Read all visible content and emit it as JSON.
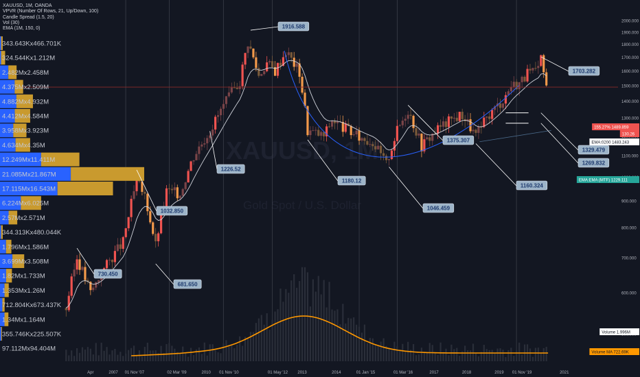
{
  "header": {
    "symbol": "XAUUSD, 1M, OANDA",
    "indicators": [
      "VPVR (Number Of Rows, 21, Up/Down, 100)",
      "Candle Spread (1.5, 20)",
      "Vol (30)",
      "EMA (1M, 150, 0)"
    ]
  },
  "watermark": {
    "main": "XAUUSD, 1M",
    "sub": "Gold Spot / U.S. Dollar"
  },
  "colors": {
    "background": "#131722",
    "up": "#ef5350",
    "down": "#f2994a",
    "neutral": "#4a4e58",
    "vp_up": "#2962ff",
    "vp_down": "#c99a2e",
    "ema": "#d1d4dc",
    "volume_ma": "#ff9800",
    "cup": "#2962ff",
    "label_bg": "#9db4c8",
    "label_text": "#1e3a6e"
  },
  "chart_data": {
    "type": "candlestick",
    "y_scale": "log",
    "ylim": [
      500,
      2100
    ],
    "y_ticks": [
      "2000.000",
      "1900.000",
      "1800.000",
      "1700.000",
      "1600.000",
      "1500.000",
      "1400.000",
      "1300.000",
      "1200.000",
      "1100.000",
      "1000.000",
      "900.000",
      "800.000",
      "700.000",
      "600.000",
      "500.000"
    ],
    "x_labels": [
      "Apr",
      "2007",
      "01 Nov '07",
      "02 Mar '09",
      "2010",
      "01 Nov '10",
      "01 May '12",
      "2013",
      "2014",
      "01 Jan '15",
      "01 Mar '16",
      "2017",
      "2018",
      "2019",
      "01 Nov '19",
      "2021"
    ],
    "price_points": [
      {
        "date": "2006-01",
        "close": 560
      },
      {
        "date": "2006-05",
        "close": 700
      },
      {
        "date": "2006-10",
        "close": 600
      },
      {
        "date": "2007-04",
        "close": 680
      },
      {
        "date": "2007-10",
        "close": 750
      },
      {
        "date": "2008-03",
        "close": 980
      },
      {
        "date": "2008-06",
        "close": 920
      },
      {
        "date": "2008-10",
        "close": 740
      },
      {
        "date": "2009-02",
        "close": 940
      },
      {
        "date": "2009-07",
        "close": 930
      },
      {
        "date": "2009-12",
        "close": 1100
      },
      {
        "date": "2010-06",
        "close": 1230
      },
      {
        "date": "2010-12",
        "close": 1400
      },
      {
        "date": "2011-05",
        "close": 1530
      },
      {
        "date": "2011-08",
        "close": 1820
      },
      {
        "date": "2011-12",
        "close": 1570
      },
      {
        "date": "2012-03",
        "close": 1660
      },
      {
        "date": "2012-06",
        "close": 1600
      },
      {
        "date": "2012-10",
        "close": 1750
      },
      {
        "date": "2013-03",
        "close": 1590
      },
      {
        "date": "2013-06",
        "close": 1230
      },
      {
        "date": "2013-12",
        "close": 1200
      },
      {
        "date": "2014-03",
        "close": 1290
      },
      {
        "date": "2014-12",
        "close": 1200
      },
      {
        "date": "2015-06",
        "close": 1170
      },
      {
        "date": "2015-11",
        "close": 1060
      },
      {
        "date": "2016-03",
        "close": 1230
      },
      {
        "date": "2016-07",
        "close": 1350
      },
      {
        "date": "2016-12",
        "close": 1150
      },
      {
        "date": "2017-06",
        "close": 1240
      },
      {
        "date": "2017-12",
        "close": 1300
      },
      {
        "date": "2018-03",
        "close": 1320
      },
      {
        "date": "2018-08",
        "close": 1200
      },
      {
        "date": "2019-01",
        "close": 1320
      },
      {
        "date": "2019-06",
        "close": 1410
      },
      {
        "date": "2019-09",
        "close": 1500
      },
      {
        "date": "2019-12",
        "close": 1520
      },
      {
        "date": "2020-03",
        "close": 1580
      },
      {
        "date": "2020-07",
        "close": 1600
      },
      {
        "date": "2020-08",
        "close": 1700
      },
      {
        "date": "2020-10",
        "close": 1490
      }
    ],
    "price_annotations": [
      {
        "label": "1916.588",
        "date": "2011-09",
        "price": 1916.588
      },
      {
        "label": "1703.282",
        "date": "2020-08",
        "price": 1703.282
      },
      {
        "label": "1375.307",
        "date": "2016-07",
        "price": 1375.307
      },
      {
        "label": "1329.479",
        "date": "2020-08",
        "price": 1329.479
      },
      {
        "label": "1269.832",
        "date": "2020-08",
        "price": 1269.832
      },
      {
        "label": "1226.52",
        "date": "2010-06",
        "price": 1226.52
      },
      {
        "label": "1180.12",
        "date": "2013-06",
        "price": 1180.12
      },
      {
        "label": "1160.324",
        "date": "2018-08",
        "price": 1160.324
      },
      {
        "label": "1046.459",
        "date": "2015-12",
        "price": 1046.459
      },
      {
        "label": "1032.850",
        "date": "2008-03",
        "price": 1032.85
      },
      {
        "label": "730.450",
        "date": "2006-05",
        "price": 730.45
      },
      {
        "label": "681.650",
        "date": "2008-10",
        "price": 681.65
      }
    ],
    "price_tags": [
      {
        "label": "155.27%  1489.859",
        "price": 1489.859,
        "color": "#ef5350"
      },
      {
        "label": "130.26",
        "price": 1470,
        "color": "#ef5350"
      },
      {
        "label": "EMA:0200  1483.243",
        "price": 1440,
        "color": "#ffffff"
      },
      {
        "label": "EMA:EMA (MTF)  1229.111",
        "price": 1229.111,
        "color": "#26a69a"
      }
    ],
    "volume_profile": [
      {
        "label": "343.643Kx466.701K",
        "up": 0.34,
        "down": 0.47
      },
      {
        "label": "324.544Kx1.212M",
        "up": 0.32,
        "down": 1.21
      },
      {
        "label": "2.482Mx2.458M",
        "up": 2.48,
        "down": 2.46
      },
      {
        "label": "4.375Mx2.509M",
        "up": 4.38,
        "down": 2.51
      },
      {
        "label": "4.882Mx4.932M",
        "up": 4.88,
        "down": 4.93
      },
      {
        "label": "4.412Mx4.584M",
        "up": 4.41,
        "down": 4.58
      },
      {
        "label": "3.958Mx3.923M",
        "up": 3.96,
        "down": 3.92
      },
      {
        "label": "4.634Mx4.35M",
        "up": 4.63,
        "down": 4.35
      },
      {
        "label": "12.249Mx11.411M",
        "up": 12.25,
        "down": 11.41
      },
      {
        "label": "21.085Mx21.867M",
        "up": 21.09,
        "down": 21.87
      },
      {
        "label": "17.115Mx16.543M",
        "up": 17.12,
        "down": 16.54
      },
      {
        "label": "6.224Mx6.025M",
        "up": 6.22,
        "down": 6.03
      },
      {
        "label": "2.57Mx2.571M",
        "up": 2.57,
        "down": 2.57
      },
      {
        "label": "344.313Kx480.044K",
        "up": 0.34,
        "down": 0.48
      },
      {
        "label": "1.796Mx1.586M",
        "up": 1.8,
        "down": 1.59
      },
      {
        "label": "3.699Mx3.508M",
        "up": 3.7,
        "down": 3.51
      },
      {
        "label": "1.82Mx1.733M",
        "up": 1.82,
        "down": 1.73
      },
      {
        "label": "1.353Mx1.26M",
        "up": 1.35,
        "down": 1.26
      },
      {
        "label": "712.804Kx673.437K",
        "up": 0.71,
        "down": 0.67
      },
      {
        "label": "1.34Mx1.164M",
        "up": 1.34,
        "down": 1.16
      },
      {
        "label": "355.746Kx225.507K",
        "up": 0.36,
        "down": 0.23
      },
      {
        "label": "97.112Mx94.404M",
        "up": 0,
        "down": 0
      }
    ],
    "volume_tags": [
      {
        "label": "Volume  1.996M",
        "color": "#ffffff"
      },
      {
        "label": "Volume MA  722.69K",
        "color": "#ff9800"
      }
    ]
  }
}
